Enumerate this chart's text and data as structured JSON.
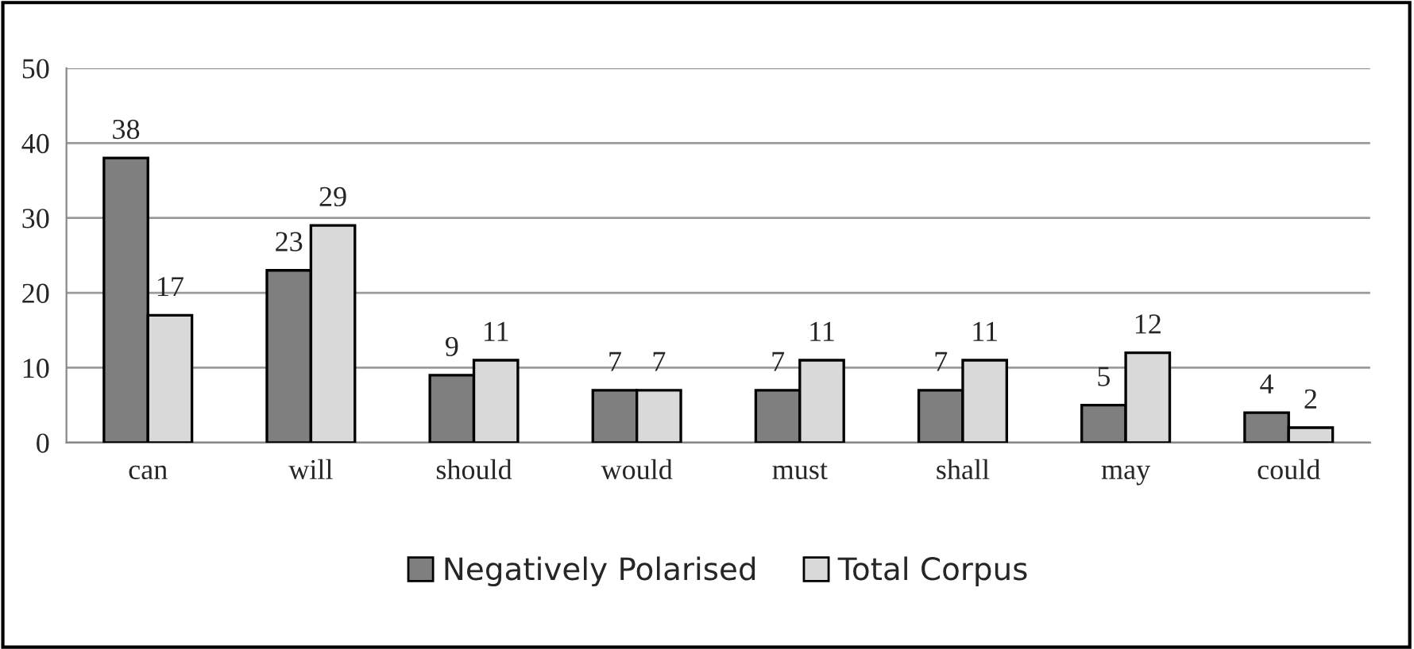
{
  "chart_data": {
    "type": "bar",
    "categories": [
      "can",
      "will",
      "should",
      "would",
      "must",
      "shall",
      "may",
      "could"
    ],
    "series": [
      {
        "name": "Negatively Polarised",
        "color": "#7f7f7f",
        "values": [
          38,
          23,
          9,
          7,
          7,
          7,
          5,
          4
        ]
      },
      {
        "name": "Total Corpus",
        "color": "#d9d9d9",
        "values": [
          17,
          29,
          11,
          7,
          11,
          11,
          12,
          2
        ]
      }
    ],
    "ylim": [
      0,
      50
    ],
    "yticks": [
      0,
      10,
      20,
      30,
      40,
      50
    ],
    "grid": "y",
    "legend": "bottom",
    "data_labels": true
  }
}
